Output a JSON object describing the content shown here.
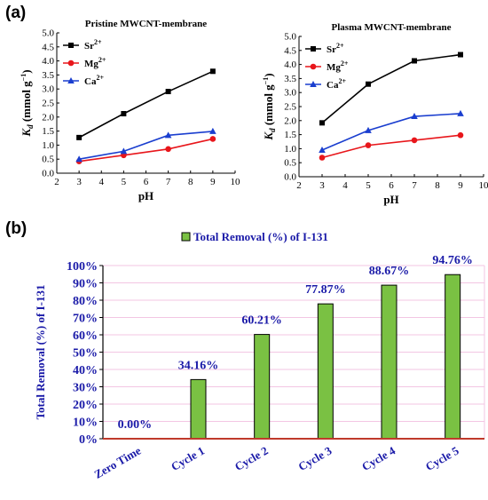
{
  "panels": {
    "a": "(a)",
    "b": "(b)"
  },
  "chart_data": [
    {
      "type": "line",
      "title": "Pristine MWCNT-membrane",
      "xlabel": "pH",
      "ylabel_main": "K",
      "ylabel_sub": "d",
      "ylabel_unit": " (mmol g",
      "ylabel_sup": "−1",
      "ylabel_close": ")",
      "xlim": [
        2,
        10
      ],
      "ylim": [
        0,
        5
      ],
      "xticks": [
        2,
        3,
        4,
        5,
        6,
        7,
        8,
        9,
        10
      ],
      "yticks": [
        0.0,
        0.5,
        1.0,
        1.5,
        2.0,
        2.5,
        3.0,
        3.5,
        4.0,
        4.5,
        5.0
      ],
      "x": [
        3,
        5,
        7,
        9
      ],
      "legend_position": "top-left",
      "series": [
        {
          "name": "Sr",
          "ion_charge": "2+",
          "color": "#000000",
          "marker": "square",
          "values": [
            1.27,
            2.12,
            2.91,
            3.63
          ]
        },
        {
          "name": "Mg",
          "ion_charge": "2+",
          "color": "#e8161b",
          "marker": "circle",
          "values": [
            0.42,
            0.64,
            0.86,
            1.22
          ]
        },
        {
          "name": "Ca",
          "ion_charge": "2+",
          "color": "#1a3ecf",
          "marker": "triangle",
          "values": [
            0.5,
            0.78,
            1.35,
            1.49
          ]
        }
      ]
    },
    {
      "type": "line",
      "title": "Plasma MWCNT-membrane",
      "xlabel": "pH",
      "ylabel_main": "K",
      "ylabel_sub": "d",
      "ylabel_unit": " (mmol g",
      "ylabel_sup": "−1",
      "ylabel_close": ")",
      "xlim": [
        2,
        10
      ],
      "ylim": [
        0,
        5
      ],
      "xticks": [
        2,
        3,
        4,
        5,
        6,
        7,
        8,
        9,
        10
      ],
      "yticks": [
        0.0,
        0.5,
        1.0,
        1.5,
        2.0,
        2.5,
        3.0,
        3.5,
        4.0,
        4.5,
        5.0
      ],
      "x": [
        3,
        5,
        7,
        9
      ],
      "legend_position": "top-left",
      "series": [
        {
          "name": "Sr",
          "ion_charge": "2+",
          "color": "#000000",
          "marker": "square",
          "values": [
            1.92,
            3.3,
            4.13,
            4.35
          ]
        },
        {
          "name": "Mg",
          "ion_charge": "2+",
          "color": "#e8161b",
          "marker": "circle",
          "values": [
            0.68,
            1.12,
            1.3,
            1.48
          ]
        },
        {
          "name": "Ca",
          "ion_charge": "2+",
          "color": "#1a3ecf",
          "marker": "triangle",
          "values": [
            0.95,
            1.65,
            2.15,
            2.25
          ]
        }
      ]
    },
    {
      "type": "bar",
      "legend_label": "Total Removal (%) of  I-131",
      "legend_position": "top-center",
      "ylabel": "Total Removal (%) of I-131",
      "ylim": [
        0,
        100
      ],
      "yticks": [
        0,
        10,
        20,
        30,
        40,
        50,
        60,
        70,
        80,
        90,
        100
      ],
      "categories": [
        "Zero Time",
        "Cycle  1",
        "Cycle  2",
        "Cycle  3",
        "Cycle  4",
        "Cycle  5"
      ],
      "values": [
        0.0,
        34.16,
        60.21,
        77.87,
        88.67,
        94.76
      ],
      "data_labels": [
        "0.00%",
        "34.16%",
        "60.21%",
        "77.87%",
        "88.67%",
        "94.76%"
      ],
      "bar_color": "#7ac143",
      "baseline_color": "#c0392b",
      "grid_color": "#f3c6e3"
    }
  ]
}
